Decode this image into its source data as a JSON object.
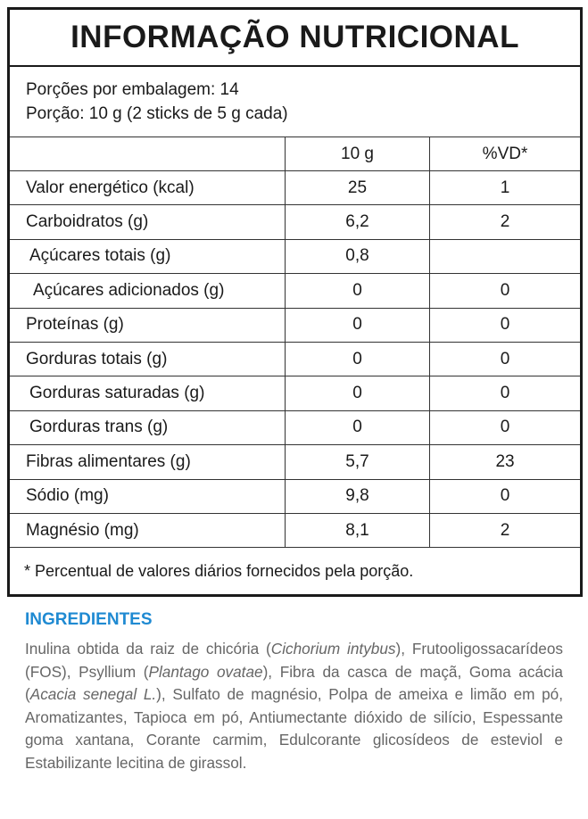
{
  "table": {
    "title": "INFORMAÇÃO NUTRICIONAL",
    "servings": [
      "Porções por embalagem: 14",
      "Porção: 10 g (2 sticks de 5 g cada)"
    ],
    "header": [
      "10 g",
      "%VD*"
    ],
    "rows": [
      [
        "Valor energético (kcal)",
        "25",
        "1"
      ],
      [
        "Carboidratos (g)",
        "6,2",
        "2"
      ],
      [
        "Açúcares totais (g)",
        "0,8",
        null
      ],
      [
        "Açúcares adicionados (g)",
        "0",
        "0"
      ],
      [
        "Proteínas (g)",
        "0",
        "0"
      ],
      [
        "Gorduras totais (g)",
        "0",
        "0"
      ],
      [
        "Gorduras saturadas (g)",
        "0",
        "0"
      ],
      [
        "Gorduras trans (g)",
        "0",
        "0"
      ],
      [
        "Fibras alimentares (g)",
        "5,7",
        "23"
      ],
      [
        "Sódio (mg)",
        "9,8",
        "0"
      ],
      [
        "Magnésio (mg)",
        "8,1",
        "2"
      ]
    ],
    "footnote": "* Percentual de valores diários fornecidos pela porção."
  },
  "ingredients": {
    "title": "INGREDIENTES",
    "parts": [
      {
        "text": "Inulina obtida da raiz de chicória (",
        "italic": false
      },
      {
        "text": "Cichorium intybus",
        "italic": true
      },
      {
        "text": "), Frutooligossacarídeos (FOS), Psyllium (",
        "italic": false
      },
      {
        "text": "Plantago ovatae",
        "italic": true
      },
      {
        "text": "), Fibra da casca de maçã, Goma acácia (",
        "italic": false
      },
      {
        "text": "Acacia senegal L.",
        "italic": true
      },
      {
        "text": "), Sulfato de magnésio, Polpa de ameixa e limão em pó, Aromatizantes, Tapioca em pó, Antiumectante dióxido de silício, Espessante goma xantana, Corante carmim, Edulcorante glicosídeos de esteviol e Estabilizante lecitina de girassol.",
        "italic": false
      }
    ]
  }
}
